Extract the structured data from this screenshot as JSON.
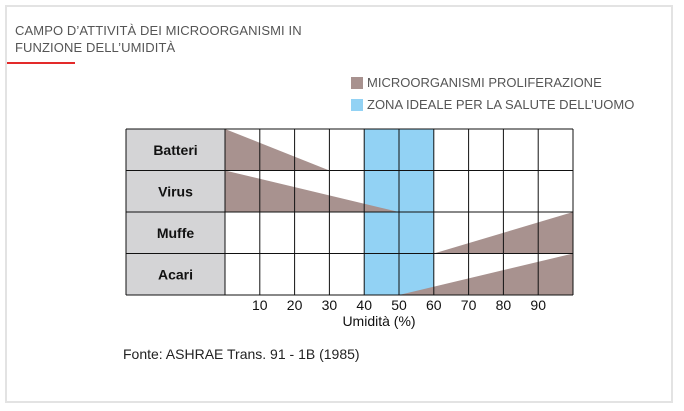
{
  "title": "CAMPO D’ATTIVITÀ DEI MICROORGANISMI IN FUNZIONE DELL’UMIDITÀ",
  "legend": [
    {
      "label": "MICROORGANISMI PROLIFERAZIONE",
      "color": "#a8928f"
    },
    {
      "label": "ZONA IDEALE PER LA SALUTE DELL’UOMO",
      "color": "#92d2f4"
    }
  ],
  "source": "Fonte: ASHRAE Trans. 91 - 1B (1985)",
  "chart_data": {
    "type": "bar",
    "xlabel": "Umidità (%)",
    "xlim": [
      0,
      100
    ],
    "ticks": [
      10,
      20,
      30,
      40,
      50,
      60,
      70,
      80,
      90
    ],
    "categories": [
      "Batteri",
      "Virus",
      "Muffe",
      "Acari"
    ],
    "ideal_zone": [
      40,
      60
    ],
    "proliferation": [
      {
        "name": "Batteri",
        "from": 0,
        "to": 30,
        "peak": "low"
      },
      {
        "name": "Virus",
        "from": 0,
        "to": 50,
        "peak": "low"
      },
      {
        "name": "Muffe",
        "from": 60,
        "to": 100,
        "peak": "high"
      },
      {
        "name": "Acari",
        "from": 50,
        "to": 100,
        "peak": "high"
      }
    ],
    "grid": true
  }
}
